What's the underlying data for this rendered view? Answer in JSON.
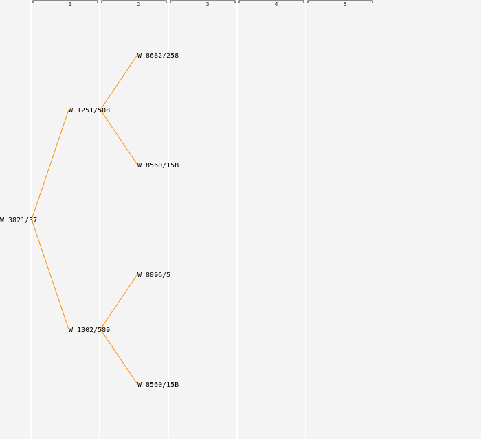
{
  "generations": [
    "1",
    "2",
    "3",
    "4",
    "5"
  ],
  "tree": {
    "label": "W 3821/37",
    "children": [
      {
        "label": "W 1251/508",
        "children": [
          {
            "label": "W 8682/258"
          },
          {
            "label": "W 8560/15B"
          }
        ]
      },
      {
        "label": "W 1302/589",
        "children": [
          {
            "label": "W 8896/5"
          },
          {
            "label": "W 8560/15B"
          }
        ]
      }
    ]
  },
  "colors": {
    "background": "#f4f4f4",
    "edge": "#ff8c00",
    "column_line": "#ffffff",
    "text": "#000000"
  }
}
